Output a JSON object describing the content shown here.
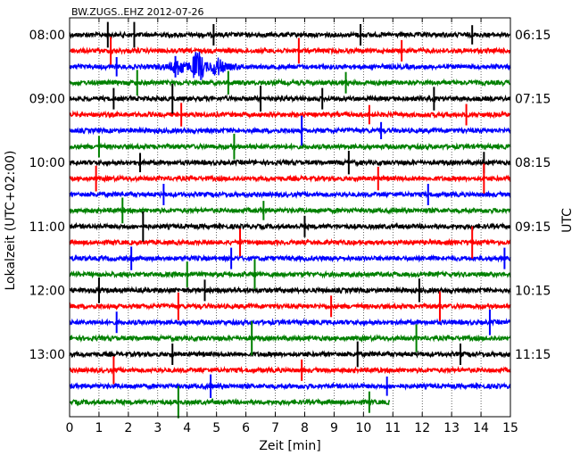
{
  "chart_data": {
    "type": "line",
    "title": "BW.ZUGS..EHZ 2012-07-26",
    "xlabel": "Zeit  [min]",
    "ylabel_left": "Lokalzeit (UTC+02:00)",
    "ylabel_right": "UTC",
    "xlim": [
      0,
      15
    ],
    "x_ticks": [
      "0",
      "1",
      "2",
      "3",
      "4",
      "5",
      "6",
      "7",
      "8",
      "9",
      "10",
      "11",
      "12",
      "13",
      "14",
      "15"
    ],
    "left_ticks": [
      "08:00",
      "09:00",
      "10:00",
      "11:00",
      "12:00",
      "13:00"
    ],
    "right_ticks": [
      "06:15",
      "07:15",
      "08:15",
      "09:15",
      "10:15",
      "11:15"
    ],
    "trace_interval_min": 15,
    "trace_count": 24,
    "last_trace_end_min": 10.9,
    "color_cycle": [
      "#000000",
      "#ff0000",
      "#0000ff",
      "#008000"
    ],
    "grid": "vertical-dotted",
    "seismic_burst": {
      "trace": 2,
      "start_min": 3.0,
      "end_min": 5.8,
      "amplitude": 2.4
    },
    "spikes": [
      {
        "trace": 0,
        "t": 1.3,
        "amp": 1.2
      },
      {
        "trace": 0,
        "t": 2.2,
        "amp": 1.2
      },
      {
        "trace": 0,
        "t": 4.9,
        "amp": 1.0
      },
      {
        "trace": 0,
        "t": 9.9,
        "amp": 1.0
      },
      {
        "trace": 0,
        "t": 13.7,
        "amp": 0.9
      },
      {
        "trace": 1,
        "t": 1.4,
        "amp": 1.3
      },
      {
        "trace": 1,
        "t": 7.8,
        "amp": 1.2
      },
      {
        "trace": 1,
        "t": 11.3,
        "amp": 1.0
      },
      {
        "trace": 2,
        "t": 1.6,
        "amp": 0.9
      },
      {
        "trace": 2,
        "t": 3.6,
        "amp": 1.0
      },
      {
        "trace": 3,
        "t": 2.3,
        "amp": 1.2
      },
      {
        "trace": 3,
        "t": 5.4,
        "amp": 1.1
      },
      {
        "trace": 3,
        "t": 9.4,
        "amp": 1.0
      },
      {
        "trace": 4,
        "t": 1.5,
        "amp": 1.0
      },
      {
        "trace": 4,
        "t": 3.5,
        "amp": 1.4
      },
      {
        "trace": 4,
        "t": 6.5,
        "amp": 1.2
      },
      {
        "trace": 4,
        "t": 8.6,
        "amp": 1.0
      },
      {
        "trace": 4,
        "t": 12.4,
        "amp": 1.1
      },
      {
        "trace": 5,
        "t": 3.8,
        "amp": 1.1
      },
      {
        "trace": 5,
        "t": 10.2,
        "amp": 0.9
      },
      {
        "trace": 5,
        "t": 13.5,
        "amp": 1.0
      },
      {
        "trace": 6,
        "t": 7.9,
        "amp": 1.4
      },
      {
        "trace": 6,
        "t": 10.6,
        "amp": 0.8
      },
      {
        "trace": 7,
        "t": 1.0,
        "amp": 1.0
      },
      {
        "trace": 7,
        "t": 5.6,
        "amp": 1.2
      },
      {
        "trace": 8,
        "t": 2.4,
        "amp": 0.9
      },
      {
        "trace": 8,
        "t": 9.5,
        "amp": 1.1
      },
      {
        "trace": 8,
        "t": 14.1,
        "amp": 1.0
      },
      {
        "trace": 9,
        "t": 0.9,
        "amp": 1.2
      },
      {
        "trace": 9,
        "t": 10.5,
        "amp": 1.1
      },
      {
        "trace": 9,
        "t": 14.1,
        "amp": 1.4
      },
      {
        "trace": 10,
        "t": 3.2,
        "amp": 1.0
      },
      {
        "trace": 10,
        "t": 12.2,
        "amp": 1.0
      },
      {
        "trace": 11,
        "t": 1.8,
        "amp": 1.2
      },
      {
        "trace": 11,
        "t": 6.6,
        "amp": 0.9
      },
      {
        "trace": 12,
        "t": 2.5,
        "amp": 1.4
      },
      {
        "trace": 12,
        "t": 8.0,
        "amp": 1.0
      },
      {
        "trace": 13,
        "t": 5.8,
        "amp": 1.3
      },
      {
        "trace": 13,
        "t": 13.7,
        "amp": 1.5
      },
      {
        "trace": 14,
        "t": 2.1,
        "amp": 1.1
      },
      {
        "trace": 14,
        "t": 5.5,
        "amp": 1.0
      },
      {
        "trace": 14,
        "t": 14.8,
        "amp": 1.0
      },
      {
        "trace": 15,
        "t": 4.0,
        "amp": 1.2
      },
      {
        "trace": 15,
        "t": 6.3,
        "amp": 1.4
      },
      {
        "trace": 16,
        "t": 1.0,
        "amp": 1.2
      },
      {
        "trace": 16,
        "t": 4.6,
        "amp": 1.0
      },
      {
        "trace": 16,
        "t": 11.9,
        "amp": 1.1
      },
      {
        "trace": 17,
        "t": 3.7,
        "amp": 1.3
      },
      {
        "trace": 17,
        "t": 8.9,
        "amp": 1.0
      },
      {
        "trace": 17,
        "t": 12.6,
        "amp": 1.4
      },
      {
        "trace": 18,
        "t": 1.6,
        "amp": 1.0
      },
      {
        "trace": 18,
        "t": 14.3,
        "amp": 1.2
      },
      {
        "trace": 19,
        "t": 6.2,
        "amp": 1.6
      },
      {
        "trace": 19,
        "t": 11.8,
        "amp": 1.3
      },
      {
        "trace": 20,
        "t": 3.5,
        "amp": 1.0
      },
      {
        "trace": 20,
        "t": 9.8,
        "amp": 1.2
      },
      {
        "trace": 20,
        "t": 13.3,
        "amp": 1.0
      },
      {
        "trace": 21,
        "t": 1.5,
        "amp": 1.3
      },
      {
        "trace": 21,
        "t": 7.9,
        "amp": 1.0
      },
      {
        "trace": 22,
        "t": 4.8,
        "amp": 1.1
      },
      {
        "trace": 22,
        "t": 10.8,
        "amp": 0.9
      },
      {
        "trace": 23,
        "t": 3.7,
        "amp": 1.5
      },
      {
        "trace": 23,
        "t": 10.2,
        "amp": 1.0
      }
    ]
  }
}
